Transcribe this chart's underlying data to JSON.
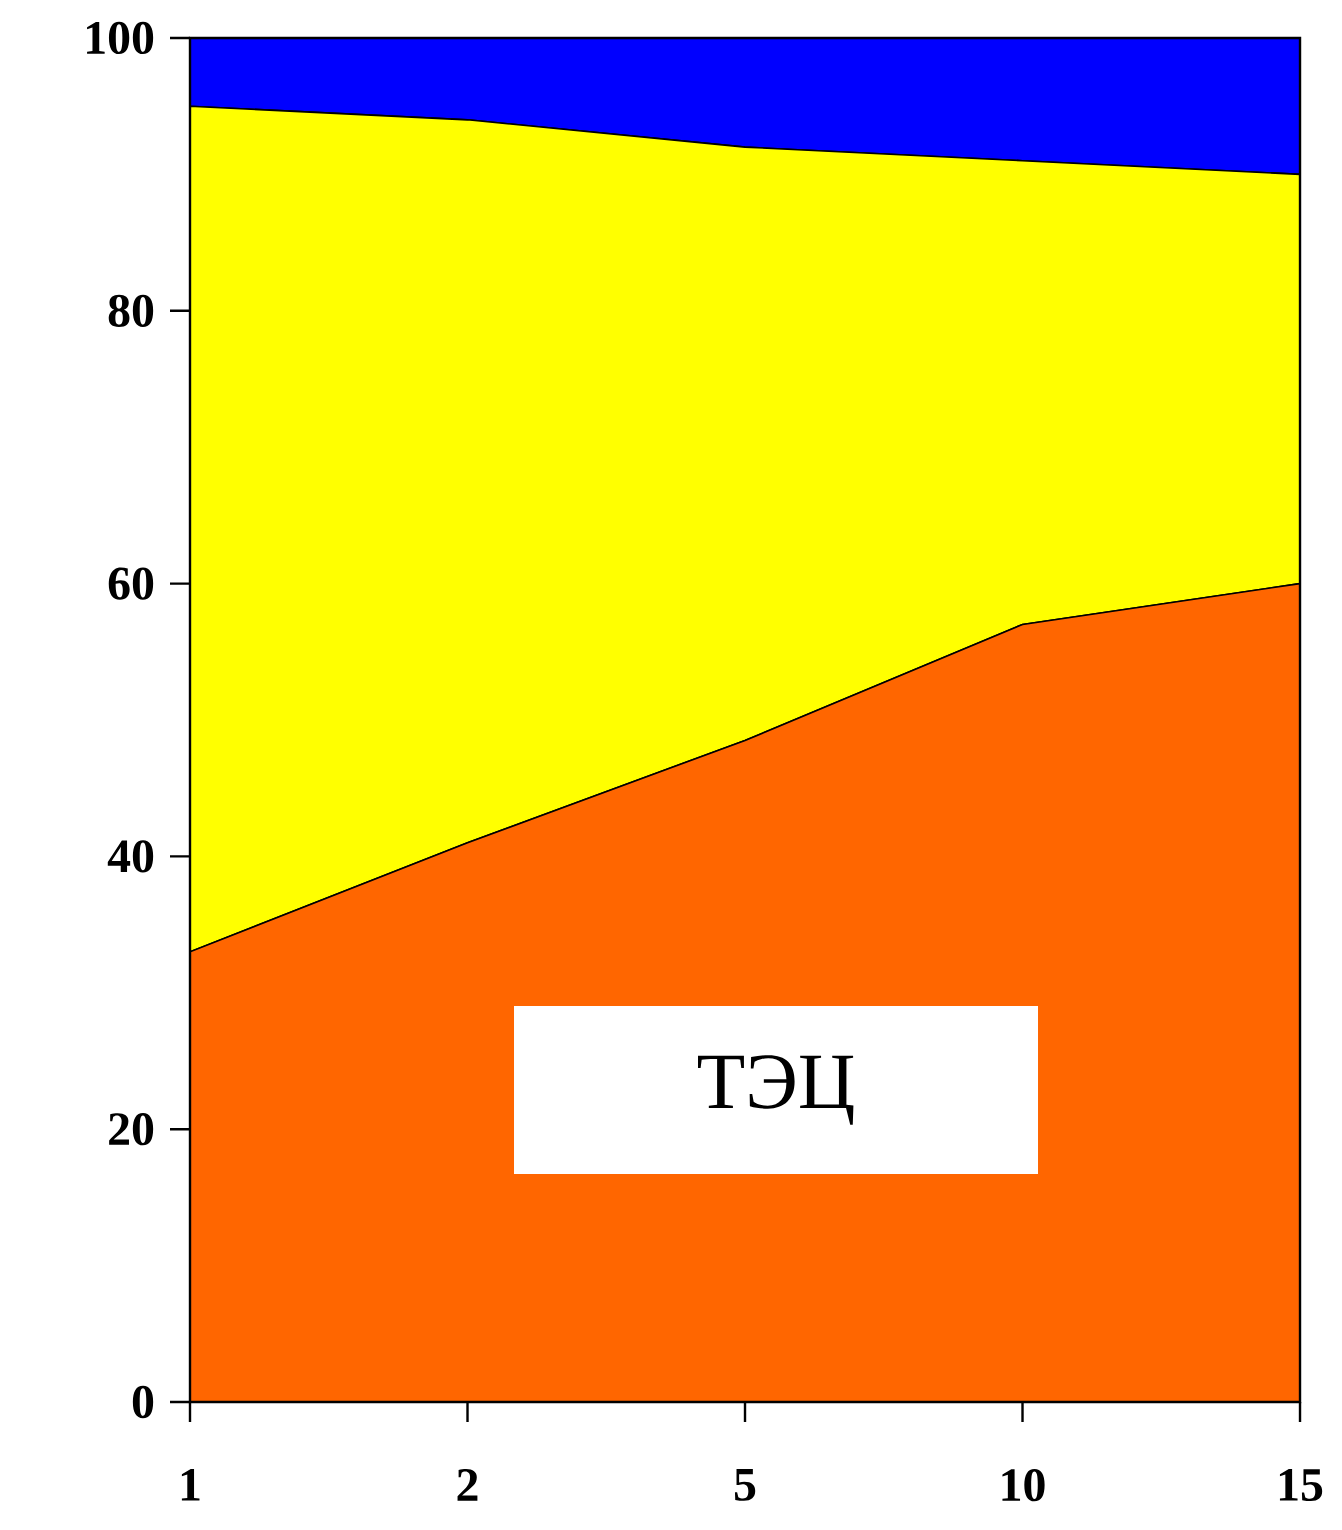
{
  "chart_data": {
    "type": "area",
    "stacked": true,
    "categories": [
      "1",
      "2",
      "5",
      "10",
      "15"
    ],
    "series": [
      {
        "color": "#ff6600",
        "values": [
          33,
          41,
          48.5,
          57,
          60
        ]
      },
      {
        "color": "#ffff00",
        "values": [
          62,
          53,
          43.5,
          34,
          30
        ]
      },
      {
        "color": "#0000ff",
        "values": [
          5,
          6,
          8,
          9,
          10
        ]
      }
    ],
    "ylim": [
      0,
      100
    ],
    "yticks": [
      0,
      20,
      40,
      60,
      80,
      100
    ],
    "annotations": [
      "ТЭЦ"
    ],
    "grid": false
  }
}
